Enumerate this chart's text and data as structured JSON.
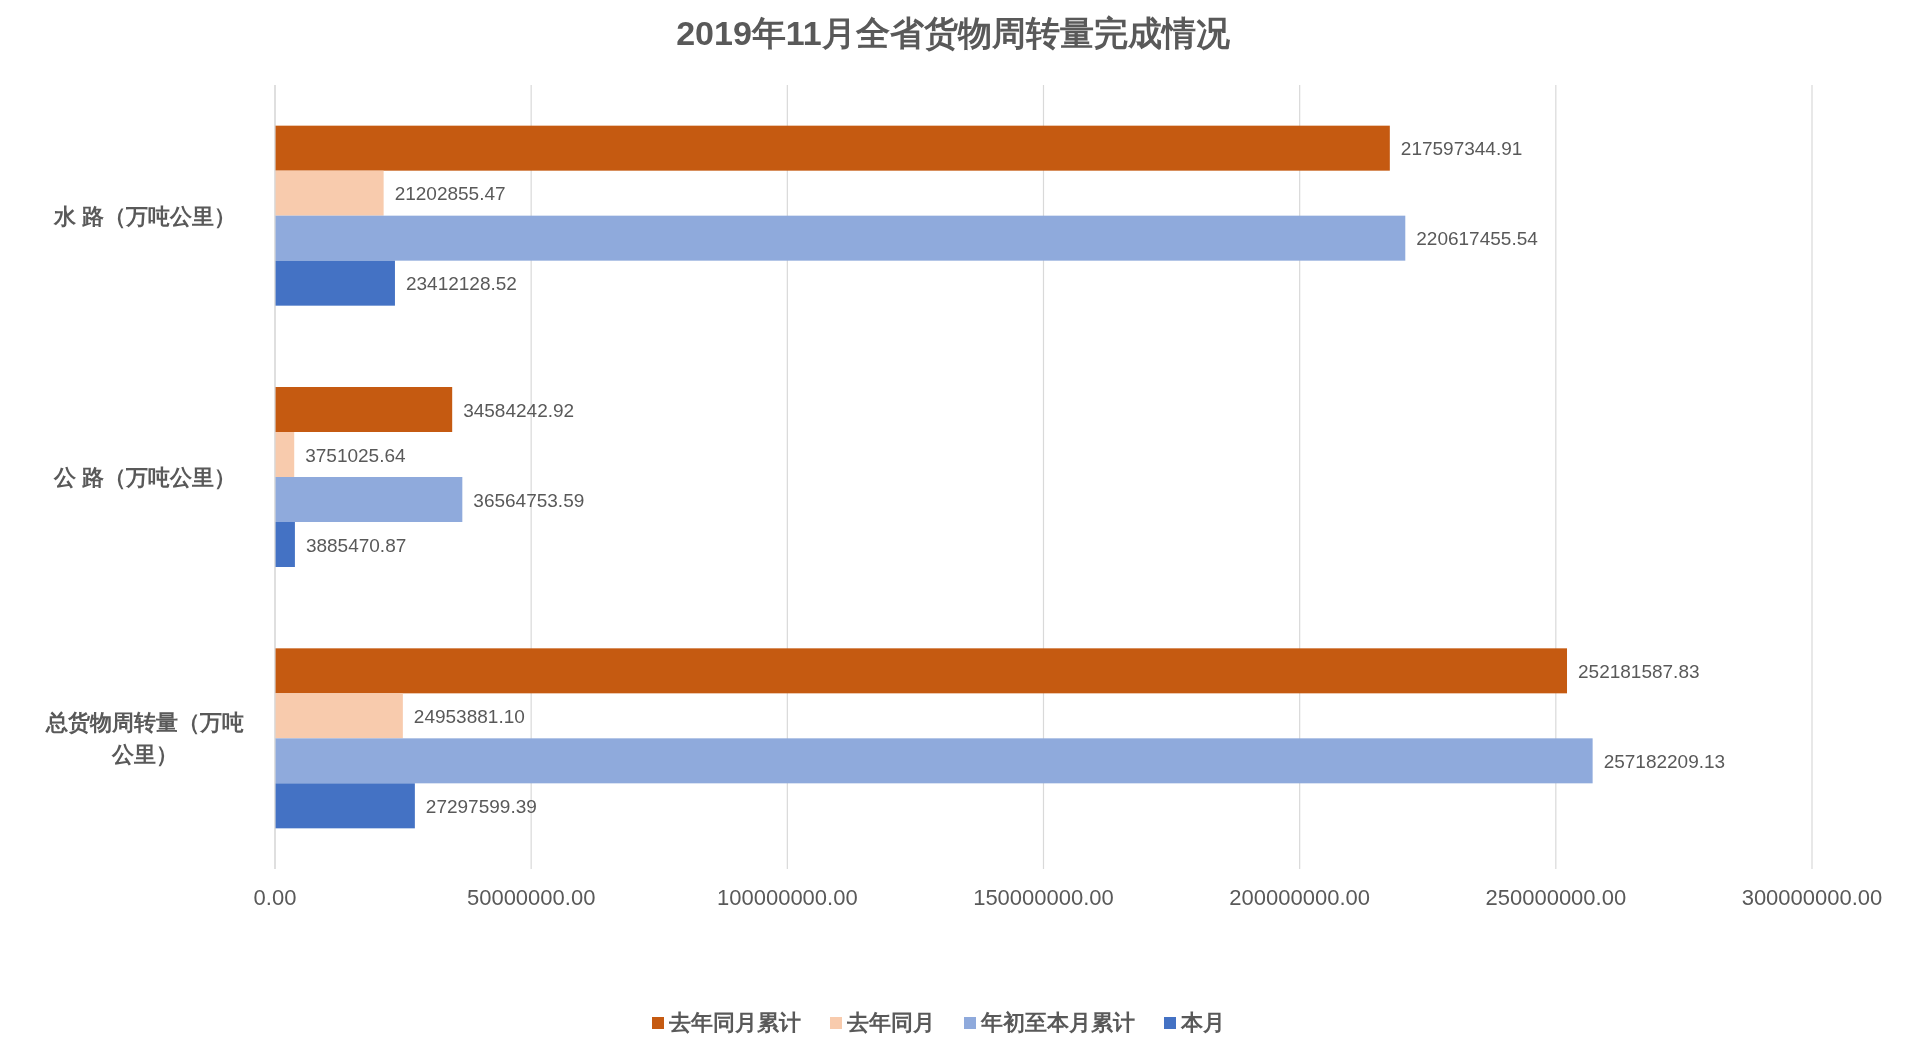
{
  "chart_data": {
    "type": "bar",
    "orientation": "horizontal",
    "title": "2019年11月全省货物周转量完成情况",
    "categories": [
      "水 路（万吨公里）",
      "公 路（万吨公里）",
      "总货物周转量（万吨公里）"
    ],
    "series": [
      {
        "name": "去年同月累计",
        "color": "#c55a11",
        "values": [
          217597344.91,
          34584242.92,
          252181587.83
        ],
        "value_labels": [
          "217597344.91",
          "34584242.92",
          "252181587.83"
        ]
      },
      {
        "name": "去年同月",
        "color": "#f8cbad",
        "values": [
          21202855.47,
          3751025.64,
          24953881.1
        ],
        "value_labels": [
          "21202855.47",
          "3751025.64",
          "24953881.10"
        ]
      },
      {
        "name": "年初至本月累计",
        "color": "#8faadc",
        "values": [
          220617455.54,
          36564753.59,
          257182209.13
        ],
        "value_labels": [
          "220617455.54",
          "36564753.59",
          "257182209.13"
        ]
      },
      {
        "name": "本月",
        "color": "#4472c4",
        "values": [
          23412128.52,
          3885470.87,
          27297599.39
        ],
        "value_labels": [
          "23412128.52",
          "3885470.87",
          "27297599.39"
        ]
      }
    ],
    "xlim": [
      0,
      300000000
    ],
    "xticks": [
      {
        "value": 0,
        "label": "0.00"
      },
      {
        "value": 50000000,
        "label": "50000000.00"
      },
      {
        "value": 100000000,
        "label": "100000000.00"
      },
      {
        "value": 150000000,
        "label": "150000000.00"
      },
      {
        "value": 200000000,
        "label": "200000000.00"
      },
      {
        "value": 250000000,
        "label": "250000000.00"
      },
      {
        "value": 300000000,
        "label": "300000000.00"
      }
    ],
    "grid": "x",
    "legend": "bottom"
  }
}
